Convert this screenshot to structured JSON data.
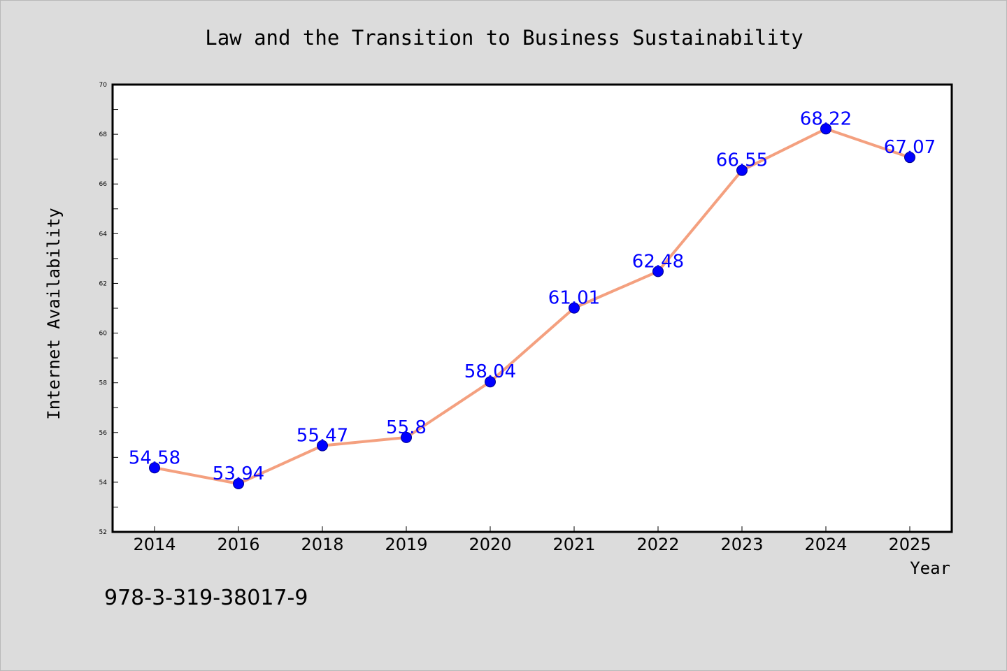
{
  "chart_data": {
    "type": "line",
    "title": "Law and the Transition to Business Sustainability",
    "xlabel": "Year",
    "ylabel": "Internet Availability",
    "categories": [
      "2014",
      "2016",
      "2018",
      "2019",
      "2020",
      "2021",
      "2022",
      "2023",
      "2024",
      "2025"
    ],
    "series": [
      {
        "values": [
          54.58,
          53.94,
          55.47,
          55.8,
          58.04,
          61.01,
          62.48,
          66.55,
          68.22,
          67.07
        ],
        "data_labels": [
          "54.58",
          "53.94",
          "55.47",
          "55.8",
          "58.04",
          "61.01",
          "62.48",
          "66.55",
          "68.22",
          "67.07"
        ],
        "line_color": "#f4a07f",
        "marker_color": "#0000ff",
        "label_color": "#0000ff"
      }
    ],
    "ylim": [
      52,
      70
    ],
    "yticks": [
      "52",
      "54",
      "56",
      "58",
      "60",
      "62",
      "64",
      "66",
      "68",
      "70"
    ],
    "grid": false,
    "legend": "none",
    "background_color": "#dcdcdc",
    "plot_background_color": "#ffffff"
  },
  "footnote": "978-3-319-38017-9"
}
